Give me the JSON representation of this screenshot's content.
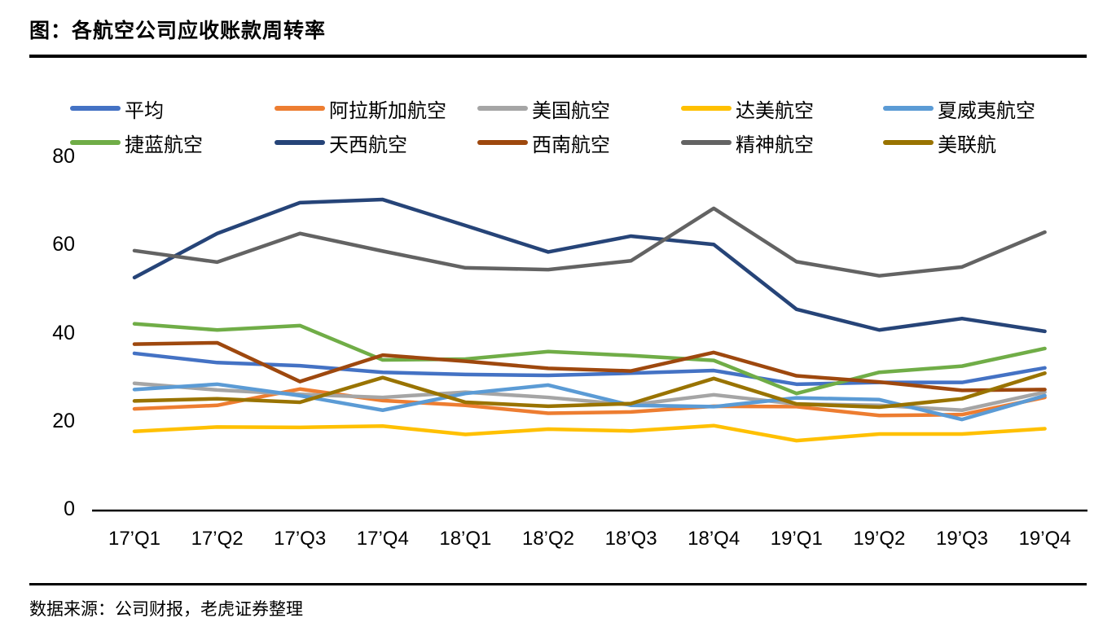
{
  "page": {
    "title": "图：各航空公司应收账款周转率",
    "source_note": "数据来源：公司财报，老虎证券整理"
  },
  "chart_data": {
    "type": "line",
    "title": "各航空公司应收账款周转率",
    "legend_position": "top",
    "grid": false,
    "categories": [
      "17’Q1",
      "17’Q2",
      "17’Q3",
      "17’Q4",
      "18’Q1",
      "18’Q2",
      "18’Q3",
      "18’Q4",
      "19’Q1",
      "19’Q2",
      "19’Q3",
      "19’Q4"
    ],
    "y_axis": {
      "min": 0,
      "max": 80,
      "ticks": [
        0,
        20,
        40,
        60,
        80
      ]
    },
    "series": [
      {
        "name": "平均",
        "color": "#4472C4",
        "values": [
          35.3,
          33.2,
          32.5,
          31.0,
          30.5,
          30.3,
          30.8,
          31.4,
          28.3,
          28.7,
          28.7,
          32.0
        ]
      },
      {
        "name": "阿拉斯加航空",
        "color": "#ED7D31",
        "values": [
          22.7,
          23.5,
          27.2,
          24.6,
          23.5,
          21.7,
          22.0,
          23.3,
          23.2,
          21.2,
          21.4,
          25.3
        ]
      },
      {
        "name": "美国航空",
        "color": "#A5A5A5",
        "values": [
          28.5,
          27.0,
          26.0,
          25.3,
          26.5,
          25.3,
          23.6,
          25.9,
          23.8,
          23.5,
          22.4,
          26.5
        ]
      },
      {
        "name": "达美航空",
        "color": "#FFC000",
        "values": [
          17.6,
          18.6,
          18.5,
          18.8,
          16.9,
          18.1,
          17.7,
          18.9,
          15.5,
          17.0,
          17.0,
          18.2
        ]
      },
      {
        "name": "夏威夷航空",
        "color": "#5B9BD5",
        "values": [
          27.1,
          28.3,
          25.7,
          22.4,
          26.2,
          28.1,
          23.5,
          23.2,
          25.2,
          24.8,
          20.3,
          25.7
        ]
      },
      {
        "name": "捷蓝航空",
        "color": "#70AD47",
        "values": [
          42.0,
          40.6,
          41.6,
          33.8,
          34.0,
          35.7,
          34.8,
          33.7,
          26.2,
          31.0,
          32.4,
          36.4
        ]
      },
      {
        "name": "天西航空",
        "color": "#264478",
        "values": [
          52.5,
          62.5,
          69.5,
          70.2,
          64.3,
          58.3,
          61.9,
          60.0,
          45.3,
          40.6,
          43.2,
          40.3
        ]
      },
      {
        "name": "西南航空",
        "color": "#9E480E",
        "values": [
          37.4,
          37.7,
          28.9,
          34.9,
          33.5,
          31.9,
          31.3,
          35.5,
          30.2,
          28.8,
          26.9,
          27.1
        ]
      },
      {
        "name": "精神航空",
        "color": "#636363",
        "values": [
          58.6,
          56.0,
          62.5,
          58.5,
          54.7,
          54.3,
          56.3,
          68.2,
          56.1,
          52.9,
          54.9,
          62.8
        ]
      },
      {
        "name": "美联航",
        "color": "#997300",
        "values": [
          24.5,
          25.0,
          24.2,
          29.8,
          24.2,
          23.3,
          23.9,
          29.6,
          23.8,
          23.1,
          25.0,
          30.8
        ]
      }
    ]
  }
}
